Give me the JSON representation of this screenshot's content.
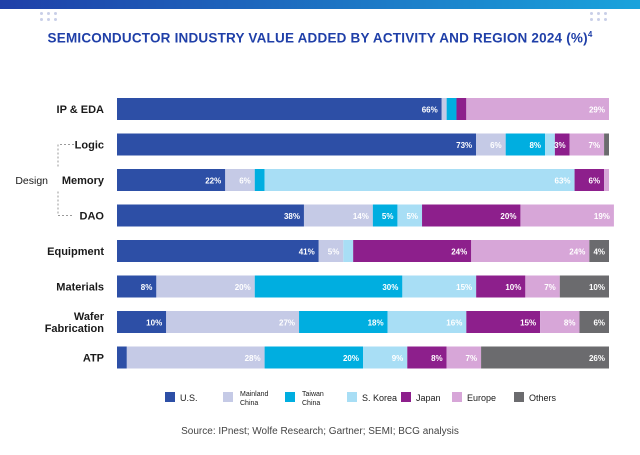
{
  "title": "SEMICONDUCTOR INDUSTRY VALUE ADDED BY ACTIVITY AND REGION 2024 (%)",
  "title_footnote": "4",
  "source": "Source: IPnest; Wolfe Research; Gartner; SEMI; BCG analysis",
  "accent_color": "#1f3fa8",
  "chart_data": {
    "type": "bar",
    "orientation": "horizontal",
    "stacked": true,
    "title": "SEMICONDUCTOR INDUSTRY VALUE ADDED BY ACTIVITY AND REGION 2024 (%)",
    "xlim": [
      0,
      100
    ],
    "group_label": "Design",
    "design_group_rows": [
      "Logic",
      "Memory",
      "DAO"
    ],
    "categories": [
      "IP & EDA",
      "Logic",
      "Memory",
      "DAO",
      "Equipment",
      "Materials",
      "Wafer Fabrication",
      "ATP"
    ],
    "category_lines": [
      [
        "IP & EDA"
      ],
      [
        "Logic"
      ],
      [
        "Memory"
      ],
      [
        "DAO"
      ],
      [
        "Equipment"
      ],
      [
        "Materials"
      ],
      [
        "Wafer",
        "Fabrication"
      ],
      [
        "ATP"
      ]
    ],
    "series": [
      {
        "name": "U.S.",
        "legend_lines": [
          "U.S."
        ],
        "color": "#2d4fa6",
        "values": [
          66,
          73,
          22,
          38,
          41,
          8,
          10,
          2
        ],
        "labels": [
          "66%",
          "73%",
          "22%",
          "38%",
          "41%",
          "8%",
          "10%",
          ""
        ]
      },
      {
        "name": "Mainland China",
        "legend_lines": [
          "Mainland",
          "China"
        ],
        "color": "#c5cae6",
        "values": [
          1,
          6,
          6,
          14,
          5,
          20,
          27,
          28
        ],
        "labels": [
          "",
          "6%",
          "6%",
          "14%",
          "5%",
          "20%",
          "27%",
          "28%"
        ]
      },
      {
        "name": "Taiwan China",
        "legend_lines": [
          "Taiwan",
          "China"
        ],
        "color": "#00aee0",
        "values": [
          2,
          8,
          2,
          5,
          0,
          30,
          18,
          20
        ],
        "labels": [
          "",
          "8%",
          "",
          "5%",
          "",
          "30%",
          "18%",
          "20%"
        ]
      },
      {
        "name": "S. Korea",
        "legend_lines": [
          "S. Korea"
        ],
        "color": "#a8def5",
        "values": [
          0,
          2,
          63,
          5,
          2,
          15,
          16,
          9
        ],
        "labels": [
          "",
          "",
          "63%",
          "5%",
          "",
          "15%",
          "16%",
          "9%"
        ]
      },
      {
        "name": "Japan",
        "legend_lines": [
          "Japan"
        ],
        "color": "#8d1f8c",
        "values": [
          2,
          3,
          6,
          20,
          24,
          10,
          15,
          8
        ],
        "labels": [
          "",
          "3%",
          "6%",
          "20%",
          "24%",
          "10%",
          "15%",
          "8%"
        ]
      },
      {
        "name": "Europe",
        "legend_lines": [
          "Europe"
        ],
        "color": "#d7a6d8",
        "values": [
          29,
          7,
          1,
          19,
          24,
          7,
          8,
          7
        ],
        "labels": [
          "29%",
          "7%",
          "",
          "19%",
          "24%",
          "7%",
          "8%",
          "7%"
        ]
      },
      {
        "name": "Others",
        "legend_lines": [
          "Others"
        ],
        "color": "#6b6b6e",
        "values": [
          0,
          1,
          0,
          0,
          4,
          10,
          6,
          26
        ],
        "labels": [
          "",
          "",
          "",
          "",
          "4%",
          "10%",
          "6%",
          "26%"
        ]
      }
    ]
  }
}
